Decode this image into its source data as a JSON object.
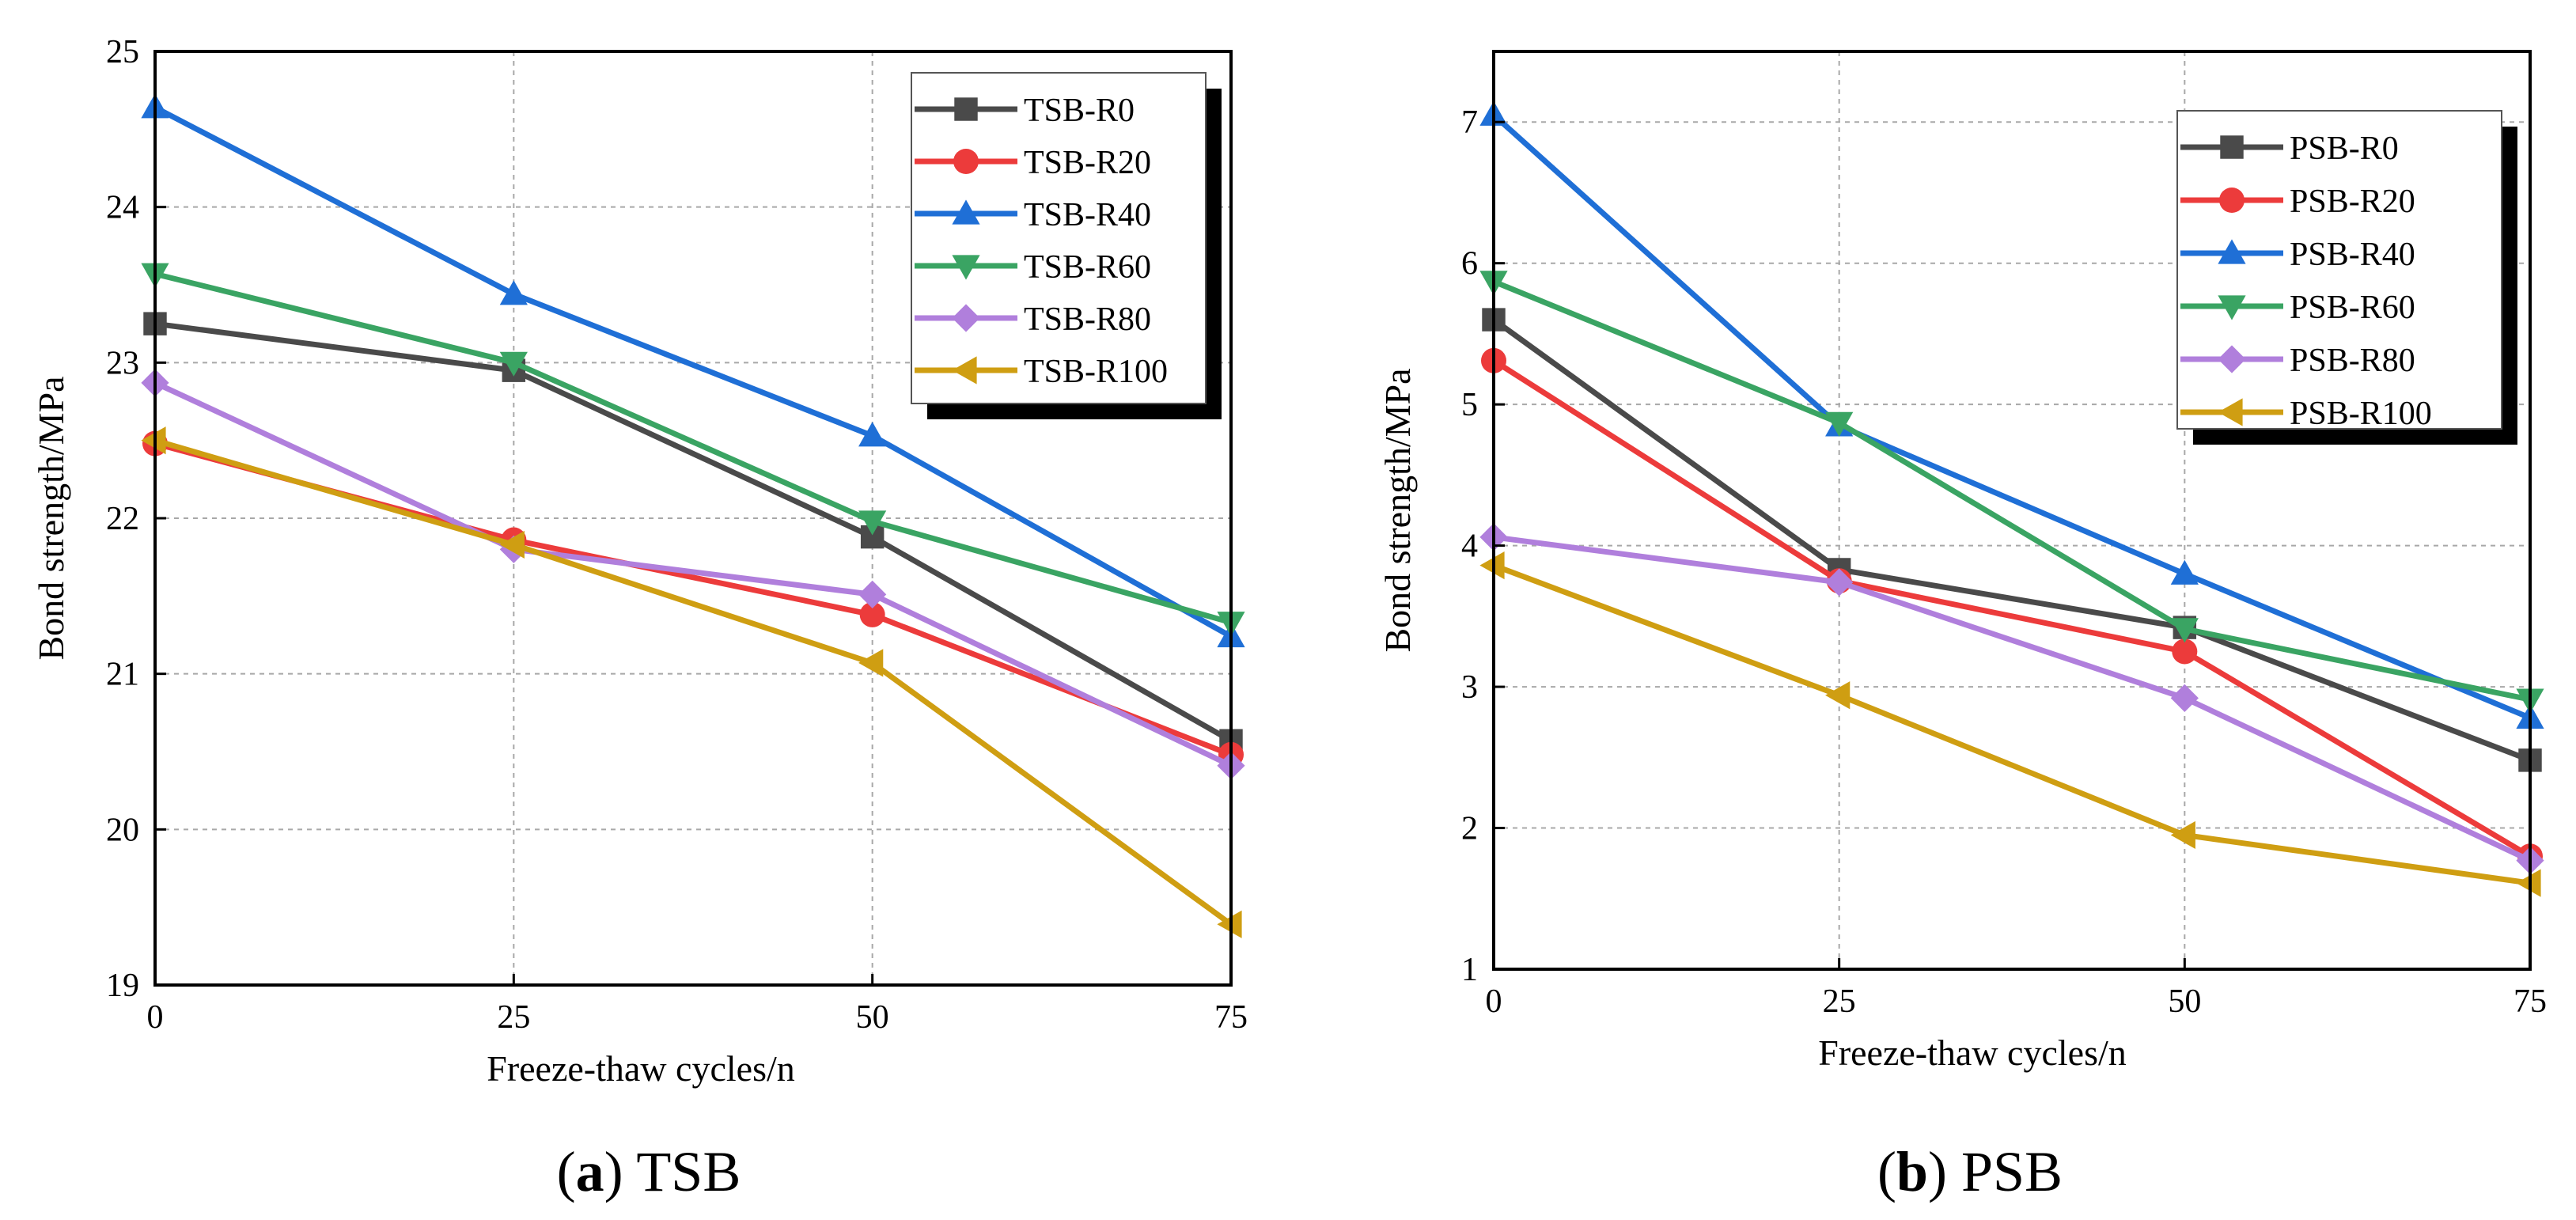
{
  "colors": {
    "R0": "#4a4a4a",
    "R20": "#ec3b3b",
    "R40": "#1f6fd6",
    "R60": "#3aa463",
    "R80": "#b07fdc",
    "R100": "#cf9e12"
  },
  "chart_data": [
    {
      "type": "line",
      "panel_label": "(a)",
      "title": "TSB",
      "xlabel": "Freeze-thaw cycles/n",
      "ylabel": "Bond strength/MPa",
      "x": [
        0,
        25,
        50,
        75
      ],
      "xticks": [
        "0",
        "25",
        "50",
        "75"
      ],
      "yticks": [
        "19",
        "20",
        "21",
        "22",
        "23",
        "24",
        "25"
      ],
      "xlim": [
        0,
        75
      ],
      "ylim": [
        19,
        25
      ],
      "grid": true,
      "legend_position": "top-right",
      "series": [
        {
          "name": "TSB-R0",
          "marker": "square",
          "color_key": "R0",
          "values": [
            23.25,
            22.95,
            21.88,
            20.57
          ]
        },
        {
          "name": "TSB-R20",
          "marker": "circle",
          "color_key": "R20",
          "values": [
            22.48,
            21.86,
            21.38,
            20.48
          ]
        },
        {
          "name": "TSB-R40",
          "marker": "triangle-up",
          "color_key": "R40",
          "values": [
            24.64,
            23.44,
            22.53,
            21.24
          ]
        },
        {
          "name": "TSB-R60",
          "marker": "triangle-down",
          "color_key": "R60",
          "values": [
            23.57,
            23.0,
            21.98,
            21.33
          ]
        },
        {
          "name": "TSB-R80",
          "marker": "diamond",
          "color_key": "R80",
          "values": [
            22.87,
            21.8,
            21.51,
            20.41
          ]
        },
        {
          "name": "TSB-R100",
          "marker": "triangle-left",
          "color_key": "R100",
          "values": [
            22.5,
            21.83,
            21.07,
            19.39
          ]
        }
      ]
    },
    {
      "type": "line",
      "panel_label": "(b)",
      "title": "PSB",
      "xlabel": "Freeze-thaw cycles/n",
      "ylabel": "Bond strength/MPa",
      "x": [
        0,
        25,
        50,
        75
      ],
      "xticks": [
        "0",
        "25",
        "50",
        "75"
      ],
      "yticks": [
        "1",
        "2",
        "3",
        "4",
        "5",
        "6",
        "7"
      ],
      "xlim": [
        0,
        75
      ],
      "ylim": [
        1,
        7.5
      ],
      "grid": true,
      "legend_position": "top-right",
      "series": [
        {
          "name": "PSB-R0",
          "marker": "square",
          "color_key": "R0",
          "values": [
            5.6,
            3.83,
            3.42,
            2.48
          ]
        },
        {
          "name": "PSB-R20",
          "marker": "circle",
          "color_key": "R20",
          "values": [
            5.31,
            3.75,
            3.25,
            1.8
          ]
        },
        {
          "name": "PSB-R40",
          "marker": "triangle-up",
          "color_key": "R40",
          "values": [
            7.05,
            4.85,
            3.8,
            2.78
          ]
        },
        {
          "name": "PSB-R60",
          "marker": "triangle-down",
          "color_key": "R60",
          "values": [
            5.87,
            4.87,
            3.41,
            2.91
          ]
        },
        {
          "name": "PSB-R80",
          "marker": "diamond",
          "color_key": "R80",
          "values": [
            4.06,
            3.74,
            2.92,
            1.77
          ]
        },
        {
          "name": "PSB-R100",
          "marker": "triangle-left",
          "color_key": "R100",
          "values": [
            3.86,
            2.94,
            1.95,
            1.61
          ]
        }
      ]
    }
  ]
}
